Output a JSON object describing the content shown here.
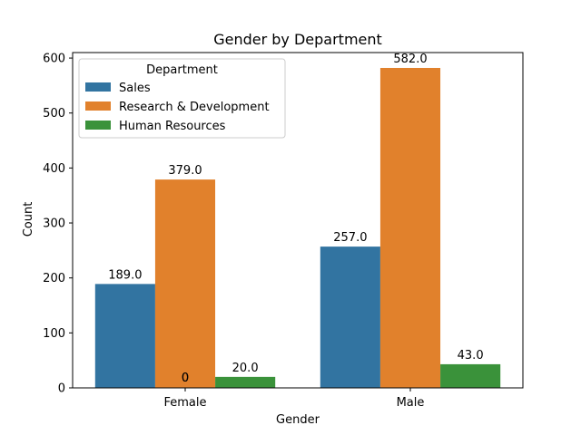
{
  "chart_data": {
    "type": "bar",
    "title": "Gender by Department",
    "xlabel": "Gender",
    "ylabel": "Count",
    "categories": [
      "Female",
      "Male"
    ],
    "ylim": [
      0,
      610
    ],
    "yticks": [
      0,
      100,
      200,
      300,
      400,
      500,
      600
    ],
    "series": [
      {
        "name": "Sales",
        "values": [
          189,
          257
        ],
        "labels": [
          "189.0",
          "257.0"
        ],
        "color": "#3274a1"
      },
      {
        "name": "Research & Development",
        "values": [
          379,
          582
        ],
        "labels": [
          "379.0",
          "582.0"
        ],
        "color": "#e1812c"
      },
      {
        "name": "Human Resources",
        "values": [
          20,
          43
        ],
        "labels": [
          "20.0",
          "43.0"
        ],
        "color": "#3a923a"
      }
    ],
    "annotations": [
      "0",
      "0"
    ],
    "legend": {
      "title": "Department",
      "placement": "top-left"
    },
    "grid": false
  }
}
